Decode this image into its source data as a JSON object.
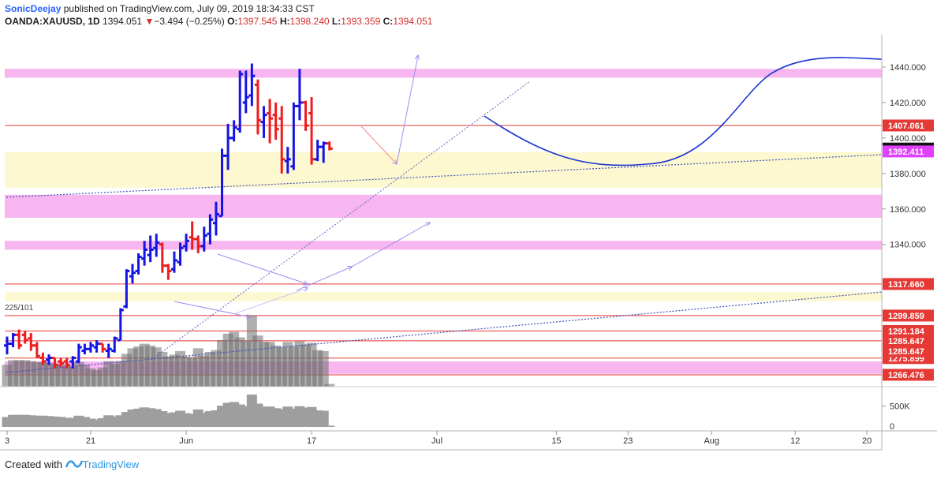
{
  "header": {
    "author": "SonicDeejay",
    "published": "published on TradingView.com, July 09, 2019 18:34:33 CST",
    "symbol": "OANDA:XAUUSD, 1D",
    "last": "1394.051",
    "change": "−3.494 (−0.25%)",
    "o_label": "O:",
    "o_value": "1397.545",
    "h_label": "H:",
    "h_value": "1398.240",
    "l_label": "L:",
    "l_value": "1393.359",
    "c_label": "C:",
    "c_value": "1394.051"
  },
  "footer": {
    "created_with": "Created with",
    "brand": "TradingView"
  },
  "chart_data": {
    "type": "ohlc",
    "symbol": "OANDA:XAUUSD",
    "interval": "1D",
    "ylim": [
      1262,
      1448
    ],
    "y_ticks": [
      {
        "value": 1440,
        "label": "1440.000"
      },
      {
        "value": 1420,
        "label": "1420.000"
      },
      {
        "value": 1400,
        "label": "1400.000"
      },
      {
        "value": 1380,
        "label": "1380.000"
      },
      {
        "value": 1360,
        "label": "1360.000"
      },
      {
        "value": 1340,
        "label": "1340.000"
      }
    ],
    "x_ticks": [
      {
        "bar": 0,
        "label": "3"
      },
      {
        "bar": 14,
        "label": "21"
      },
      {
        "bar": 30,
        "label": "Jun"
      },
      {
        "bar": 51,
        "label": "17"
      },
      {
        "bar": 72,
        "label": "Jul"
      },
      {
        "bar": 92,
        "label": "15"
      },
      {
        "bar": 104,
        "label": "23"
      },
      {
        "bar": 118,
        "label": "Aug"
      },
      {
        "bar": 132,
        "label": "12"
      },
      {
        "bar": 144,
        "label": "20"
      }
    ],
    "price_labels": [
      {
        "value": 1407.061,
        "label": "1407.061",
        "color": "#e53935",
        "line": true
      },
      {
        "value": 1394.051,
        "label": "1394.051",
        "color": "#111111",
        "line": false
      },
      {
        "value": 1392.411,
        "label": "1392.411",
        "color": "#e040fb",
        "line": false
      },
      {
        "value": 1317.66,
        "label": "1317.660",
        "color": "#e53935",
        "line": true
      },
      {
        "value": 1299.859,
        "label": "1299.859",
        "color": "#e53935",
        "line": true
      },
      {
        "value": 1291.184,
        "label": "1291.184",
        "color": "#e53935",
        "line": true
      },
      {
        "value": 1285.647,
        "label": "1285.647",
        "color": "#e53935",
        "line": true
      },
      {
        "value": 1275.899,
        "label": "1275.899",
        "color": "#e53935",
        "line": true
      },
      {
        "value": 1266.476,
        "label": "1266.476",
        "color": "#e53935",
        "line": true
      }
    ],
    "duplicate_label": {
      "value": 1279.8,
      "label": "1285.647"
    },
    "zones": [
      {
        "from": 1434,
        "to": 1439,
        "color": "pink"
      },
      {
        "from": 1372,
        "to": 1392,
        "color": "yellow"
      },
      {
        "from": 1355,
        "to": 1368,
        "color": "pink"
      },
      {
        "from": 1337,
        "to": 1342,
        "color": "pink"
      },
      {
        "from": 1308,
        "to": 1313,
        "color": "yellow"
      },
      {
        "from": 1267,
        "to": 1274,
        "color": "pink"
      }
    ],
    "bars": [
      {
        "o": 1283,
        "h": 1288,
        "l": 1278,
        "c": 1284
      },
      {
        "o": 1284,
        "h": 1290,
        "l": 1282,
        "c": 1289
      },
      {
        "o": 1289,
        "h": 1292,
        "l": 1281,
        "c": 1283
      },
      {
        "o": 1289,
        "h": 1291,
        "l": 1284,
        "c": 1286
      },
      {
        "o": 1287,
        "h": 1290,
        "l": 1280,
        "c": 1283
      },
      {
        "o": 1283,
        "h": 1285,
        "l": 1276,
        "c": 1277
      },
      {
        "o": 1276,
        "h": 1279,
        "l": 1272,
        "c": 1274
      },
      {
        "o": 1275,
        "h": 1278,
        "l": 1272,
        "c": 1276
      },
      {
        "o": 1276,
        "h": 1276,
        "l": 1270,
        "c": 1272
      },
      {
        "o": 1274,
        "h": 1276,
        "l": 1271,
        "c": 1273
      },
      {
        "o": 1274,
        "h": 1276,
        "l": 1270,
        "c": 1272
      },
      {
        "o": 1274,
        "h": 1277,
        "l": 1270,
        "c": 1276
      },
      {
        "o": 1274,
        "h": 1284,
        "l": 1273,
        "c": 1282
      },
      {
        "o": 1280,
        "h": 1284,
        "l": 1278,
        "c": 1281
      },
      {
        "o": 1281,
        "h": 1285,
        "l": 1279,
        "c": 1283
      },
      {
        "o": 1282,
        "h": 1286,
        "l": 1279,
        "c": 1284
      },
      {
        "o": 1284,
        "h": 1284,
        "l": 1279,
        "c": 1281
      },
      {
        "o": 1280,
        "h": 1284,
        "l": 1276,
        "c": 1281
      },
      {
        "o": 1280,
        "h": 1288,
        "l": 1279,
        "c": 1287
      },
      {
        "o": 1286,
        "h": 1304,
        "l": 1286,
        "c": 1303
      },
      {
        "o": 1305,
        "h": 1326,
        "l": 1304,
        "c": 1325
      },
      {
        "o": 1322,
        "h": 1329,
        "l": 1318,
        "c": 1324
      },
      {
        "o": 1325,
        "h": 1335,
        "l": 1323,
        "c": 1333
      },
      {
        "o": 1332,
        "h": 1342,
        "l": 1328,
        "c": 1337
      },
      {
        "o": 1334,
        "h": 1345,
        "l": 1330,
        "c": 1337
      },
      {
        "o": 1338,
        "h": 1346,
        "l": 1333,
        "c": 1341
      },
      {
        "o": 1340,
        "h": 1341,
        "l": 1324,
        "c": 1328
      },
      {
        "o": 1328,
        "h": 1329,
        "l": 1320,
        "c": 1325
      },
      {
        "o": 1326,
        "h": 1336,
        "l": 1324,
        "c": 1331
      },
      {
        "o": 1330,
        "h": 1341,
        "l": 1328,
        "c": 1338
      },
      {
        "o": 1339,
        "h": 1346,
        "l": 1336,
        "c": 1342
      },
      {
        "o": 1344,
        "h": 1353,
        "l": 1337,
        "c": 1343
      },
      {
        "o": 1343,
        "h": 1345,
        "l": 1335,
        "c": 1339
      },
      {
        "o": 1339,
        "h": 1350,
        "l": 1336,
        "c": 1345
      },
      {
        "o": 1346,
        "h": 1357,
        "l": 1340,
        "c": 1354
      },
      {
        "o": 1352,
        "h": 1364,
        "l": 1345,
        "c": 1357
      },
      {
        "o": 1356,
        "h": 1394,
        "l": 1356,
        "c": 1390
      },
      {
        "o": 1390,
        "h": 1408,
        "l": 1382,
        "c": 1400
      },
      {
        "o": 1400,
        "h": 1410,
        "l": 1398,
        "c": 1406
      },
      {
        "o": 1405,
        "h": 1438,
        "l": 1403,
        "c": 1436
      },
      {
        "o": 1420,
        "h": 1438,
        "l": 1414,
        "c": 1423
      },
      {
        "o": 1424,
        "h": 1442,
        "l": 1418,
        "c": 1435
      },
      {
        "o": 1430,
        "h": 1433,
        "l": 1402,
        "c": 1410
      },
      {
        "o": 1409,
        "h": 1418,
        "l": 1400,
        "c": 1413
      },
      {
        "o": 1414,
        "h": 1422,
        "l": 1397,
        "c": 1411
      },
      {
        "o": 1413,
        "h": 1420,
        "l": 1399,
        "c": 1405
      },
      {
        "o": 1411,
        "h": 1418,
        "l": 1380,
        "c": 1388
      },
      {
        "o": 1387,
        "h": 1395,
        "l": 1380,
        "c": 1388
      },
      {
        "o": 1384,
        "h": 1420,
        "l": 1382,
        "c": 1418
      },
      {
        "o": 1418,
        "h": 1439,
        "l": 1410,
        "c": 1420
      },
      {
        "o": 1420,
        "h": 1421,
        "l": 1404,
        "c": 1407
      },
      {
        "o": 1414,
        "h": 1423,
        "l": 1385,
        "c": 1388
      },
      {
        "o": 1388,
        "h": 1399,
        "l": 1387,
        "c": 1395
      },
      {
        "o": 1395,
        "h": 1398,
        "l": 1386,
        "c": 1397
      },
      {
        "o": 1397,
        "h": 1398,
        "l": 1393,
        "c": 1394
      }
    ],
    "volume": {
      "label": "500K",
      "ymax": 950000,
      "values": [
        240000,
        290000,
        290000,
        290000,
        280000,
        270000,
        270000,
        260000,
        250000,
        240000,
        220000,
        220000,
        270000,
        240000,
        200000,
        180000,
        210000,
        280000,
        250000,
        280000,
        360000,
        420000,
        440000,
        470000,
        450000,
        430000,
        380000,
        330000,
        350000,
        390000,
        330000,
        310000,
        420000,
        340000,
        380000,
        400000,
        510000,
        580000,
        600000,
        540000,
        500000,
        780000,
        560000,
        490000,
        490000,
        450000,
        430000,
        490000,
        440000,
        500000,
        460000,
        480000,
        400000,
        390000,
        30000
      ]
    }
  }
}
